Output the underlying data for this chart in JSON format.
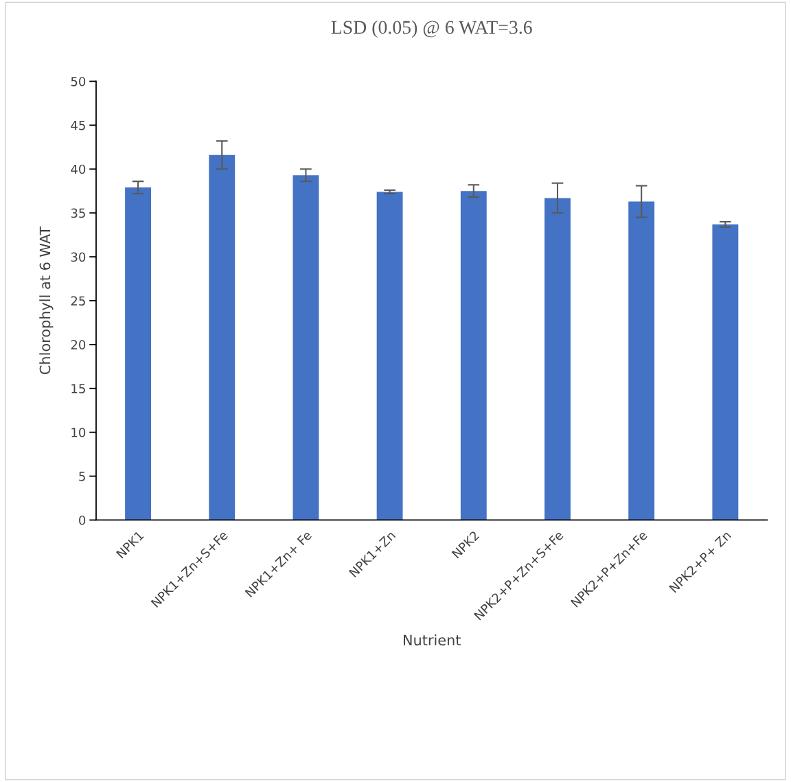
{
  "chart_data": {
    "type": "bar",
    "title": "LSD (0.05) @ 6 WAT=3.6",
    "xlabel": "Nutrient",
    "ylabel": "Chlorophyll at 6 WAT",
    "categories": [
      "NPK1",
      "NPK1+Zn+S+Fe",
      "NPK1+Zn+ Fe",
      "NPK1+Zn",
      "NPK2",
      "NPK2+P+Zn+S+Fe",
      "NPK2+P+Zn+Fe",
      "NPK2+P+ Zn"
    ],
    "values": [
      37.9,
      41.6,
      39.3,
      37.4,
      37.5,
      36.7,
      36.3,
      33.7
    ],
    "errors": [
      0.7,
      1.6,
      0.7,
      0.2,
      0.7,
      1.7,
      1.8,
      0.3
    ],
    "color": "#4472c4",
    "ylim": [
      0,
      50
    ],
    "yticks": [
      0,
      5,
      10,
      15,
      20,
      25,
      30,
      35,
      40,
      45,
      50
    ],
    "grid": false,
    "legend": false
  }
}
